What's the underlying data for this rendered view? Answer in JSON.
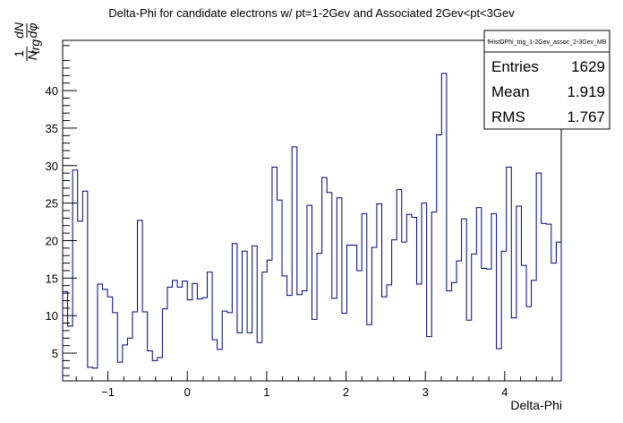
{
  "chart_data": {
    "type": "histogram",
    "title": "Delta-Phi for candidate electrons w/ pt=1-2Gev and Associated 2Gev<pt<3Gev",
    "xlabel": "Delta-Phi",
    "ylabel": "(1/N_trg) dN/dφ",
    "ylabel_parts": {
      "num1": "1",
      "den1": "N",
      "den1_sub": "trg",
      "num2": "dN",
      "den2": "dφ"
    },
    "xlim": [
      -1.5708,
      4.7124
    ],
    "ylim": [
      1.3,
      46.7
    ],
    "x_ticks": [
      -1,
      0,
      1,
      2,
      3,
      4
    ],
    "x_tick_labels": [
      "−1",
      "0",
      "1",
      "2",
      "3",
      "4"
    ],
    "y_ticks": [
      5,
      10,
      15,
      20,
      25,
      30,
      35,
      40
    ],
    "y_tick_labels": [
      "5",
      "10",
      "15",
      "20",
      "25",
      "30",
      "35",
      "40"
    ],
    "bins": 100,
    "line_color": "#000080",
    "values": [
      13.2,
      8.6,
      29.4,
      22.6,
      26.6,
      3.1,
      3.0,
      14.2,
      13.5,
      12.5,
      10.4,
      3.8,
      6.1,
      7.0,
      10.5,
      22.7,
      10.5,
      5.3,
      4.0,
      4.4,
      10.9,
      13.8,
      14.7,
      13.8,
      14.6,
      12.1,
      14.3,
      12.2,
      12.4,
      15.8,
      6.8,
      5.5,
      10.6,
      10.4,
      19.6,
      7.7,
      18.6,
      7.7,
      19.3,
      6.4,
      15.8,
      17.4,
      29.8,
      25.4,
      15.3,
      12.7,
      32.5,
      12.8,
      13.3,
      24.7,
      9.5,
      18.3,
      28.4,
      26.4,
      12.3,
      25.7,
      10.3,
      19.4,
      19.4,
      16.0,
      23.6,
      8.8,
      19.1,
      24.9,
      12.5,
      14.1,
      20.1,
      26.8,
      19.8,
      23.5,
      23.1,
      14.2,
      25.0,
      7.2,
      23.8,
      34.1,
      42.3,
      13.3,
      14.4,
      17.3,
      22.9,
      9.4,
      18.2,
      24.4,
      16.3,
      16.2,
      23.6,
      5.6,
      18.6,
      29.8,
      9.7,
      24.6,
      16.7,
      11.2,
      14.7,
      29.0,
      22.3,
      22.2,
      17.0,
      19.8
    ]
  },
  "stats": {
    "name": "fHistDPhi_trig_1-2Gev_assoc_2-3Gev_MB",
    "rows": [
      {
        "label": "Entries",
        "value": "1629"
      },
      {
        "label": "Mean",
        "value": "1.919"
      },
      {
        "label": "RMS",
        "value": "1.767"
      }
    ]
  }
}
